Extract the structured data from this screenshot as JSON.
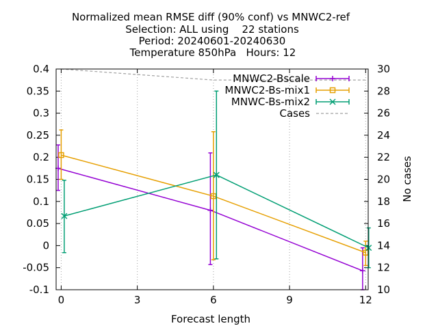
{
  "chart_data": {
    "type": "line",
    "title_lines": [
      "Normalized mean RMSE diff (90% conf) vs MNWC2-ref",
      "Selection: ALL using    22 stations",
      "Period: 20240601-20240630",
      "Temperature 850hPa   Hours: 12"
    ],
    "xlabel": "Forecast length",
    "ylabel": "",
    "y2label": "No cases",
    "xlim": [
      -0.2,
      12.1
    ],
    "ylim": [
      -0.1,
      0.4
    ],
    "y2lim": [
      10,
      30
    ],
    "xticks": [
      0,
      3,
      6,
      9,
      12
    ],
    "yticks": [
      -0.1,
      -0.05,
      0,
      0.05,
      0.1,
      0.15,
      0.2,
      0.25,
      0.3,
      0.35,
      0.4
    ],
    "y2ticks": [
      10,
      12,
      14,
      16,
      18,
      20,
      22,
      24,
      26,
      28,
      30
    ],
    "legend_position": "top-right",
    "series": [
      {
        "name": "MNWC2-Bscale",
        "color": "#9400d3",
        "marker": "plus",
        "x": [
          0,
          6,
          12
        ],
        "x_offset": -0.12,
        "values": [
          0.175,
          0.08,
          -0.057
        ],
        "err_low": [
          0.125,
          -0.043,
          -0.1
        ],
        "err_high": [
          0.228,
          0.21,
          -0.005
        ]
      },
      {
        "name": "MNWC2-Bs-mix1",
        "color": "#e69f00",
        "marker": "square",
        "x": [
          0,
          6,
          12
        ],
        "x_offset": 0,
        "values": [
          0.205,
          0.112,
          -0.016
        ],
        "err_low": [
          0.15,
          -0.032,
          -0.045
        ],
        "err_high": [
          0.262,
          0.258,
          0.01
        ]
      },
      {
        "name": "MNWC-Bs-mix2",
        "color": "#009e73",
        "marker": "x",
        "x": [
          0,
          6,
          12
        ],
        "x_offset": 0.12,
        "values": [
          0.067,
          0.16,
          -0.005
        ],
        "err_low": [
          -0.016,
          -0.03,
          -0.05
        ],
        "err_high": [
          0.148,
          0.35,
          0.04
        ]
      }
    ],
    "cases": {
      "name": "Cases",
      "color": "#a0a0a0",
      "axis": "y2",
      "x": [
        0,
        6,
        12
      ],
      "values": [
        30,
        29,
        29
      ]
    }
  }
}
